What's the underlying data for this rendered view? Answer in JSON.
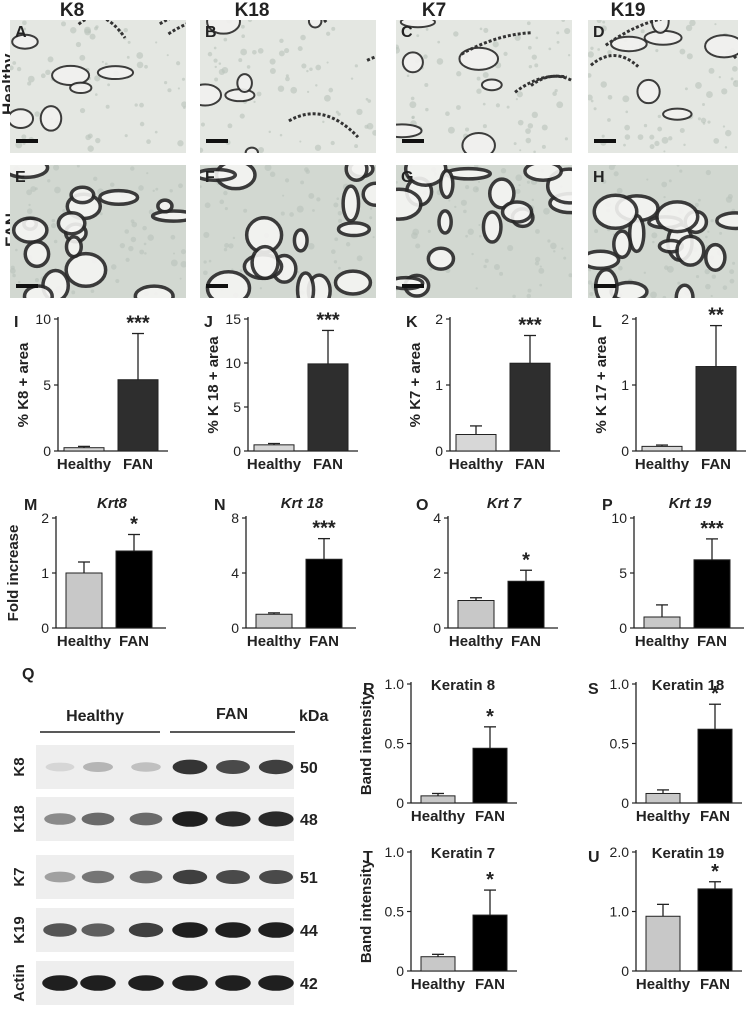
{
  "columns": [
    "K8",
    "K18",
    "K7",
    "K19"
  ],
  "rows": [
    "Healthy",
    "FAN"
  ],
  "micro_panels": [
    {
      "letter": "A"
    },
    {
      "letter": "B"
    },
    {
      "letter": "C"
    },
    {
      "letter": "D"
    },
    {
      "letter": "E"
    },
    {
      "letter": "F"
    },
    {
      "letter": "G"
    },
    {
      "letter": "H"
    }
  ],
  "area_panels": [
    {
      "letter": "I",
      "ylabel": "% K8 + area",
      "ticks": [
        "0",
        "5",
        "10"
      ],
      "ymax": 10,
      "healthy": 0.25,
      "healthy_err": 0.1,
      "fan": 5.4,
      "fan_err": 3.5,
      "sig": "***",
      "cats": [
        "Healthy",
        "FAN"
      ]
    },
    {
      "letter": "J",
      "ylabel": "% K 18 + area",
      "ticks": [
        "0",
        "5",
        "10",
        "15"
      ],
      "ymax": 15,
      "healthy": 0.7,
      "healthy_err": 0.15,
      "fan": 9.9,
      "fan_err": 3.8,
      "sig": "***",
      "cats": [
        "Healthy",
        "FAN"
      ]
    },
    {
      "letter": "K",
      "ylabel": "% K7 + area",
      "ticks": [
        "0",
        "1",
        "2"
      ],
      "ymax": 2,
      "healthy": 0.25,
      "healthy_err": 0.13,
      "fan": 1.33,
      "fan_err": 0.42,
      "sig": "***",
      "cats": [
        "Healthy",
        "FAN"
      ]
    },
    {
      "letter": "L",
      "ylabel": "% K 17 + area",
      "ticks": [
        "0",
        "1",
        "2"
      ],
      "ymax": 2,
      "healthy": 0.07,
      "healthy_err": 0.02,
      "fan": 1.28,
      "fan_err": 0.62,
      "sig": "**",
      "cats": [
        "Healthy",
        "FAN"
      ]
    }
  ],
  "mrna_panels": [
    {
      "letter": "M",
      "title": "Krt8",
      "ylabel": "Fold increase",
      "ticks": [
        "0",
        "1",
        "2"
      ],
      "ymax": 2,
      "healthy": 1.0,
      "healthy_err": 0.2,
      "fan": 1.4,
      "fan_err": 0.3,
      "sig": "*",
      "cats": [
        "Healthy",
        "FAN"
      ]
    },
    {
      "letter": "N",
      "title": "Krt 18",
      "ylabel": "",
      "ticks": [
        "0",
        "4",
        "8"
      ],
      "ymax": 8,
      "healthy": 1.0,
      "healthy_err": 0.1,
      "fan": 5.0,
      "fan_err": 1.5,
      "sig": "***",
      "cats": [
        "Healthy",
        "FAN"
      ]
    },
    {
      "letter": "O",
      "title": "Krt 7",
      "ylabel": "",
      "ticks": [
        "0",
        "2",
        "4"
      ],
      "ymax": 4,
      "healthy": 1.0,
      "healthy_err": 0.1,
      "fan": 1.7,
      "fan_err": 0.4,
      "sig": "*",
      "cats": [
        "Healthy",
        "FAN"
      ]
    },
    {
      "letter": "P",
      "title": "Krt 19",
      "ylabel": "",
      "ticks": [
        "0",
        "5",
        "10"
      ],
      "ymax": 10,
      "healthy": 1.0,
      "healthy_err": 1.1,
      "fan": 6.2,
      "fan_err": 1.9,
      "sig": "***",
      "cats": [
        "Healthy",
        "FAN"
      ]
    }
  ],
  "western": {
    "letter": "Q",
    "group_healthy": "Healthy",
    "group_fan": "FAN",
    "kda_label": "kDa",
    "rows": [
      {
        "name": "K8",
        "kda": "50",
        "intensities": [
          0.1,
          0.25,
          0.2,
          0.85,
          0.75,
          0.8
        ]
      },
      {
        "name": "K18",
        "kda": "48",
        "intensities": [
          0.45,
          0.6,
          0.6,
          0.95,
          0.9,
          0.9
        ]
      },
      {
        "name": "K7",
        "kda": "51",
        "intensities": [
          0.35,
          0.55,
          0.6,
          0.8,
          0.75,
          0.75
        ]
      },
      {
        "name": "K19",
        "kda": "44",
        "intensities": [
          0.7,
          0.65,
          0.8,
          0.95,
          0.95,
          0.95
        ]
      },
      {
        "name": "Actin",
        "kda": "42",
        "intensities": [
          0.95,
          0.95,
          0.95,
          0.95,
          0.95,
          0.95
        ]
      }
    ]
  },
  "band_panels": [
    {
      "letter": "R",
      "title": "Keratin 8",
      "ylabel": "Band intensity",
      "ticks": [
        "0",
        "0.5",
        "1.0"
      ],
      "ymax": 1.0,
      "healthy": 0.06,
      "healthy_err": 0.02,
      "fan": 0.46,
      "fan_err": 0.18,
      "sig": "*",
      "cats": [
        "Healthy",
        "FAN"
      ]
    },
    {
      "letter": "S",
      "title": "Keratin 18",
      "ylabel": "",
      "ticks": [
        "0",
        "0.5",
        "1.0"
      ],
      "ymax": 1.0,
      "healthy": 0.08,
      "healthy_err": 0.03,
      "fan": 0.62,
      "fan_err": 0.21,
      "sig": "*",
      "cats": [
        "Healthy",
        "FAN"
      ]
    },
    {
      "letter": "T",
      "title": "Keratin 7",
      "ylabel": "Band intensity",
      "ticks": [
        "0",
        "0.5",
        "1.0"
      ],
      "ymax": 1.0,
      "healthy": 0.12,
      "healthy_err": 0.02,
      "fan": 0.47,
      "fan_err": 0.21,
      "sig": "*",
      "cats": [
        "Healthy",
        "FAN"
      ]
    },
    {
      "letter": "U",
      "title": "Keratin 19",
      "ylabel": "",
      "ticks": [
        "0",
        "1.0",
        "2.0"
      ],
      "ymax": 2.0,
      "healthy": 0.92,
      "healthy_err": 0.2,
      "fan": 1.38,
      "fan_err": 0.12,
      "sig": "*",
      "cats": [
        "Healthy",
        "FAN"
      ]
    }
  ],
  "colors": {
    "healthy_bar": "#c8c8c8",
    "fan_bar_area": "#2e2e2e",
    "fan_bar_black": "#000000",
    "tissue_bg": "#dfe3de",
    "tubule": "#2a2a2a"
  }
}
